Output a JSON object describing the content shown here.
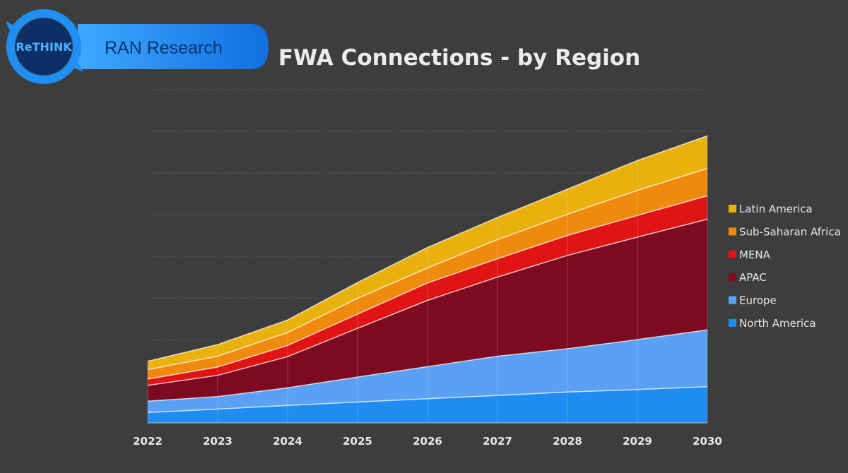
{
  "brand": {
    "logo_text": "ReTHINK",
    "banner_text": "RAN Research"
  },
  "chart_data": {
    "type": "area",
    "stacked": true,
    "title": "FWA Connections - by Region",
    "xlabel": "",
    "ylabel": "",
    "y_axis_labels_shown": false,
    "grid": "horizontal dotted",
    "legend_position": "right",
    "x": [
      "2022",
      "2023",
      "2024",
      "2025",
      "2026",
      "2027",
      "2028",
      "2029",
      "2030"
    ],
    "ylim": [
      0,
      8
    ],
    "series": [
      {
        "name": "North America",
        "color": "#1e8cf0",
        "values": [
          0.25,
          0.33,
          0.42,
          0.5,
          0.58,
          0.66,
          0.74,
          0.8,
          0.87
        ]
      },
      {
        "name": "Europe",
        "color": "#5aa0f5",
        "values": [
          0.27,
          0.3,
          0.42,
          0.6,
          0.77,
          0.94,
          1.04,
          1.2,
          1.36
        ]
      },
      {
        "name": "APAC",
        "color": "#7d0a1e",
        "values": [
          0.38,
          0.51,
          0.75,
          1.17,
          1.59,
          1.9,
          2.24,
          2.46,
          2.66
        ]
      },
      {
        "name": "MENA",
        "color": "#e01414",
        "values": [
          0.15,
          0.2,
          0.27,
          0.34,
          0.42,
          0.44,
          0.48,
          0.52,
          0.56
        ]
      },
      {
        "name": "Sub-Saharan Africa",
        "color": "#f08a0c",
        "values": [
          0.23,
          0.26,
          0.31,
          0.38,
          0.36,
          0.46,
          0.51,
          0.6,
          0.66
        ]
      },
      {
        "name": "Latin America",
        "color": "#e8b10c",
        "values": [
          0.2,
          0.28,
          0.3,
          0.38,
          0.49,
          0.53,
          0.6,
          0.72,
          0.78
        ]
      }
    ],
    "legend_order": [
      "Latin America",
      "Sub-Saharan Africa",
      "MENA",
      "APAC",
      "Europe",
      "North America"
    ]
  }
}
